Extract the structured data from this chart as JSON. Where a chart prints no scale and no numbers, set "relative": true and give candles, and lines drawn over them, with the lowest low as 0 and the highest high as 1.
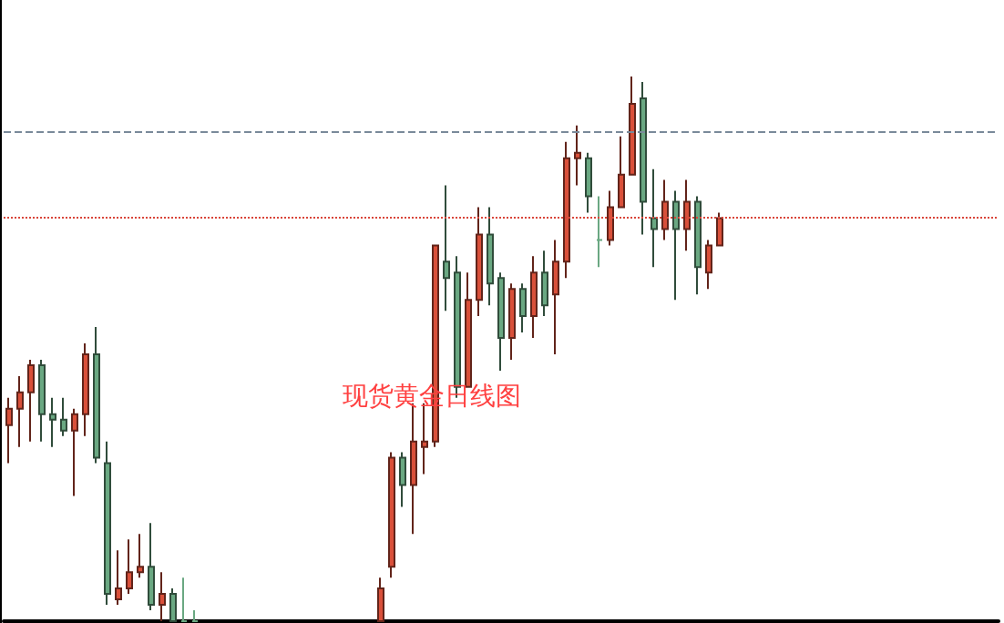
{
  "chart_data": {
    "type": "candlestick",
    "relative": true,
    "tick_labels": false,
    "annotations": [
      "现货黄金日线图"
    ],
    "categories": [
      null,
      null,
      null,
      null,
      null,
      null,
      null,
      null,
      null,
      null,
      null,
      null,
      null,
      null,
      null,
      null,
      null,
      null,
      null,
      null,
      null,
      null,
      null,
      null,
      null,
      null,
      null,
      null,
      null,
      null,
      null,
      null,
      null,
      null,
      null,
      null,
      null,
      null,
      null,
      null,
      null,
      null,
      null,
      null,
      null,
      null,
      null,
      null,
      null,
      null,
      null,
      null,
      null,
      null,
      null,
      null,
      null,
      null,
      null,
      null,
      null,
      null,
      null,
      null,
      null,
      null,
      null,
      null,
      null,
      null,
      null,
      null,
      null,
      null,
      null,
      null,
      null,
      null,
      null,
      null,
      null,
      null,
      null,
      null,
      null,
      null,
      null,
      null,
      null,
      null,
      null
    ],
    "ohlc": [
      [
        0.36,
        0.41,
        0.29,
        0.39
      ],
      [
        0.39,
        0.45,
        0.32,
        0.42
      ],
      [
        0.42,
        0.48,
        0.33,
        0.47
      ],
      [
        0.47,
        0.48,
        0.33,
        0.38
      ],
      [
        0.38,
        0.41,
        0.32,
        0.37
      ],
      [
        0.37,
        0.41,
        0.34,
        0.35
      ],
      [
        0.35,
        0.39,
        0.23,
        0.38
      ],
      [
        0.38,
        0.51,
        0.34,
        0.49
      ],
      [
        0.49,
        0.54,
        0.29,
        0.3
      ],
      [
        0.29,
        0.33,
        0.03,
        0.05
      ],
      [
        0.04,
        0.13,
        0.03,
        0.06
      ],
      [
        0.06,
        0.15,
        0.05,
        0.09
      ],
      [
        0.09,
        0.16,
        0.08,
        0.1
      ],
      [
        0.1,
        0.18,
        0.02,
        0.03
      ],
      [
        0.03,
        0.09,
        0,
        0.05
      ],
      [
        0.05,
        0.06,
        0,
        0
      ],
      [
        0,
        0.08,
        0,
        0
      ],
      [
        0,
        0.02,
        0,
        0
      ],
      null,
      null,
      null,
      null,
      null,
      null,
      null,
      null,
      null,
      null,
      null,
      null,
      null,
      null,
      null,
      null,
      [
        0,
        0.08,
        0,
        0.06
      ],
      [
        0.1,
        0.31,
        0.08,
        0.3
      ],
      [
        0.3,
        0.31,
        0.21,
        0.25
      ],
      [
        0.25,
        0.4,
        0.16,
        0.33
      ],
      [
        0.32,
        0.4,
        0.27,
        0.33
      ],
      [
        0.33,
        0.69,
        0.32,
        0.69
      ],
      [
        0.66,
        0.8,
        0.57,
        0.63
      ],
      [
        0.64,
        0.67,
        0.41,
        0.43
      ],
      [
        0.43,
        0.64,
        0.43,
        0.59
      ],
      [
        0.59,
        0.76,
        0.56,
        0.71
      ],
      [
        0.71,
        0.76,
        0.58,
        0.62
      ],
      [
        0.63,
        0.64,
        0.46,
        0.52
      ],
      [
        0.52,
        0.62,
        0.48,
        0.61
      ],
      [
        0.61,
        0.62,
        0.53,
        0.56
      ],
      [
        0.56,
        0.67,
        0.52,
        0.64
      ],
      [
        0.64,
        0.68,
        0.56,
        0.58
      ],
      [
        0.6,
        0.7,
        0.49,
        0.66
      ],
      [
        0.66,
        0.88,
        0.63,
        0.85
      ],
      [
        0.85,
        0.91,
        0.8,
        0.86
      ],
      [
        0.85,
        0.86,
        0.75,
        0.78
      ],
      [
        0.7,
        0.78,
        0.65,
        0.7
      ],
      [
        0.7,
        0.79,
        0.69,
        0.76
      ],
      [
        0.76,
        0.89,
        0.76,
        0.82
      ],
      [
        0.82,
        1,
        0.82,
        0.95
      ],
      [
        0.96,
        0.99,
        0.71,
        0.77
      ],
      [
        0.74,
        0.83,
        0.65,
        0.72
      ],
      [
        0.72,
        0.81,
        0.7,
        0.77
      ],
      [
        0.77,
        0.79,
        0.59,
        0.72
      ],
      [
        0.72,
        0.81,
        0.68,
        0.77
      ],
      [
        0.77,
        0.78,
        0.6,
        0.65
      ],
      [
        0.64,
        0.7,
        0.61,
        0.69
      ],
      [
        0.69,
        0.75,
        0.69,
        0.74
      ],
      null,
      null,
      null,
      null,
      null,
      null,
      null,
      null,
      null,
      null,
      null,
      null,
      null,
      null,
      null,
      null,
      null,
      null,
      null,
      null,
      null,
      null,
      null,
      null,
      null
    ],
    "colors": [
      "#d9503a",
      "#d9503a",
      "#d9503a",
      "#6aa882",
      "#6aa882",
      "#6aa882",
      "#d9503a",
      "#d9503a",
      "#6aa882",
      "#6aa882",
      "#d9503a",
      "#d9503a",
      "#d9503a",
      "#6aa882",
      "#d9503a",
      "#6aa882",
      "#6aa882",
      "#6aa882",
      null,
      null,
      null,
      null,
      null,
      null,
      null,
      null,
      null,
      null,
      null,
      null,
      null,
      null,
      null,
      null,
      "#d9503a",
      "#d9503a",
      "#6aa882",
      "#d9503a",
      "#d9503a",
      "#d9503a",
      "#6aa882",
      "#6aa882",
      "#d9503a",
      "#d9503a",
      "#6aa882",
      "#6aa882",
      "#d9503a",
      "#6aa882",
      "#d9503a",
      "#6aa882",
      "#d9503a",
      "#d9503a",
      "#d9503a",
      "#6aa882",
      "#6aa882",
      "#d9503a",
      "#d9503a",
      "#d9503a",
      "#6aa882",
      "#6aa882",
      "#d9503a",
      "#6aa882",
      "#d9503a",
      "#6aa882",
      "#d9503a",
      "#d9503a",
      null,
      null,
      null,
      null,
      null,
      null,
      null,
      null,
      null,
      null,
      null,
      null,
      null,
      null,
      null,
      null,
      null,
      null,
      null,
      null,
      null,
      null,
      null,
      null,
      null
    ],
    "ref_lines": [
      {
        "axis": "y",
        "value": 0.9,
        "color": "#7a8a9a",
        "line_style": "dashed"
      },
      {
        "axis": "y",
        "value": 0.74,
        "color": "#d9453a",
        "line_style": "dotted"
      }
    ]
  }
}
